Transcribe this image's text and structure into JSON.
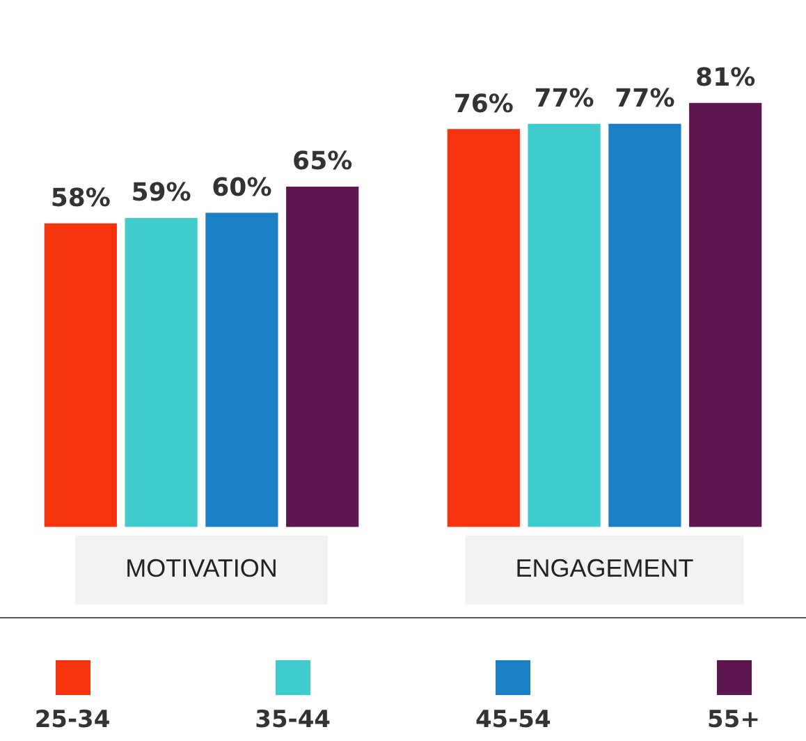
{
  "chart_data": {
    "type": "bar",
    "categories": [
      "MOTIVATION",
      "ENGAGEMENT"
    ],
    "series": [
      {
        "name": "25-34",
        "color": "#f5330f",
        "values": [
          58,
          76
        ],
        "value_labels": [
          "58%",
          "76%"
        ]
      },
      {
        "name": "35-44",
        "color": "#40cccc",
        "values": [
          59,
          77
        ],
        "value_labels": [
          "59%",
          "77%"
        ]
      },
      {
        "name": "45-54",
        "color": "#1a7fc4",
        "values": [
          60,
          77
        ],
        "value_labels": [
          "60%",
          "77%"
        ]
      },
      {
        "name": "55+",
        "color": "#5c1650",
        "values": [
          65,
          81
        ],
        "value_labels": [
          "65%",
          "81%"
        ]
      }
    ],
    "legend": "bottom",
    "grid": false
  }
}
